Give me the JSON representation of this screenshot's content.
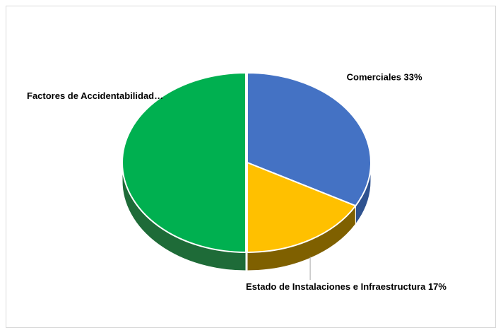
{
  "chart_data": {
    "type": "pie",
    "title": "",
    "three_d": true,
    "legend": "none",
    "slices": [
      {
        "label": "Comerciales",
        "value": 33,
        "display": "Comerciales 33%",
        "color": "#4472C4",
        "shade": "#2F528F",
        "exploded": false
      },
      {
        "label": "Estado de Instalaciones e Infraestructura",
        "value": 17,
        "display": "Estado de Instalaciones e Infraestructura 17%",
        "color": "#FFC000",
        "shade": "#7F6000",
        "exploded": false
      },
      {
        "label": "Factores de Accidentabilidad",
        "value": 50,
        "display": "Factores de Accidentabilidad…",
        "color": "#00B050",
        "shade": "#1E6B38",
        "exploded": true
      }
    ]
  }
}
